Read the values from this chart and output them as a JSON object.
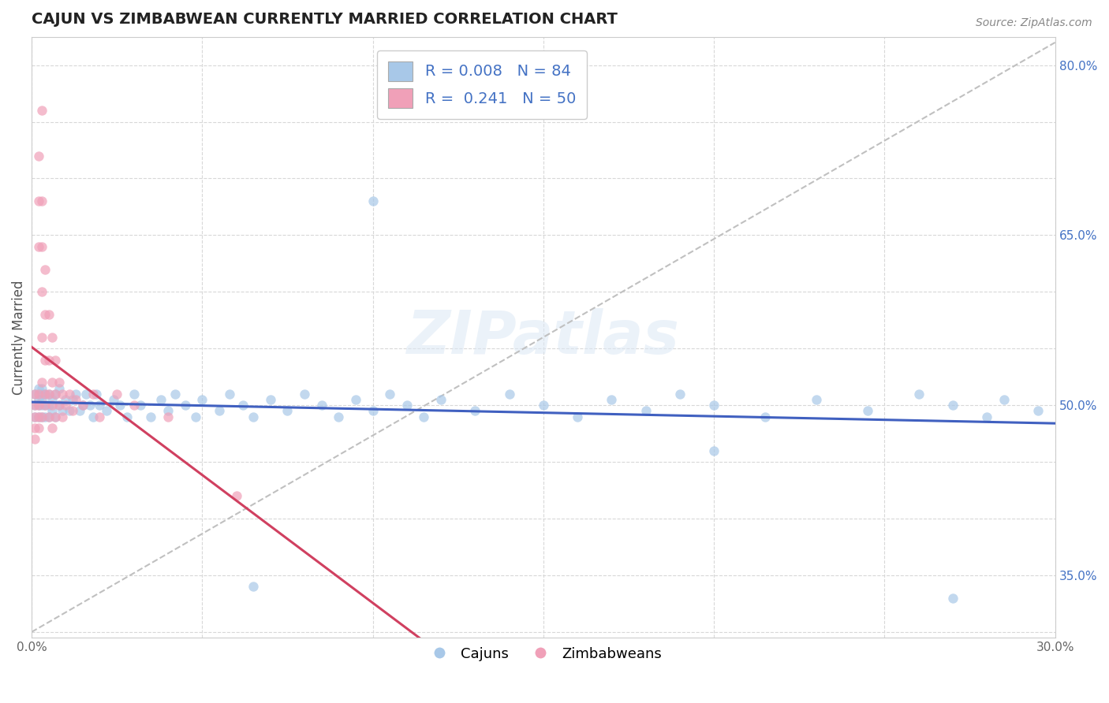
{
  "title": "CAJUN VS ZIMBABWEAN CURRENTLY MARRIED CORRELATION CHART",
  "source_text": "Source: ZipAtlas.com",
  "ylabel": "Currently Married",
  "xlim": [
    0.0,
    0.3
  ],
  "ylim": [
    0.295,
    0.825
  ],
  "cajun_R": 0.008,
  "cajun_N": 84,
  "zimbabwean_R": 0.241,
  "zimbabwean_N": 50,
  "cajun_color": "#a8c8e8",
  "zimbabwean_color": "#f0a0b8",
  "cajun_line_color": "#4060c0",
  "zimbabwean_line_color": "#d04060",
  "ref_line_color": "#c0c0c0",
  "watermark": "ZIPatlas",
  "background_color": "#ffffff",
  "grid_color": "#d8d8d8",
  "cajun_x": [
    0.001,
    0.001,
    0.001,
    0.002,
    0.002,
    0.002,
    0.002,
    0.003,
    0.003,
    0.003,
    0.003,
    0.003,
    0.004,
    0.004,
    0.004,
    0.005,
    0.005,
    0.005,
    0.006,
    0.006,
    0.007,
    0.007,
    0.008,
    0.008,
    0.009,
    0.01,
    0.011,
    0.012,
    0.013,
    0.014,
    0.015,
    0.016,
    0.017,
    0.018,
    0.019,
    0.02,
    0.022,
    0.024,
    0.026,
    0.028,
    0.03,
    0.032,
    0.035,
    0.038,
    0.04,
    0.042,
    0.045,
    0.048,
    0.05,
    0.055,
    0.058,
    0.062,
    0.065,
    0.07,
    0.075,
    0.08,
    0.085,
    0.09,
    0.095,
    0.1,
    0.105,
    0.11,
    0.115,
    0.12,
    0.13,
    0.14,
    0.15,
    0.16,
    0.17,
    0.18,
    0.19,
    0.2,
    0.215,
    0.23,
    0.245,
    0.26,
    0.27,
    0.28,
    0.285,
    0.295,
    0.1,
    0.065,
    0.2,
    0.27
  ],
  "cajun_y": [
    0.5,
    0.51,
    0.49,
    0.5,
    0.515,
    0.49,
    0.505,
    0.5,
    0.51,
    0.49,
    0.505,
    0.515,
    0.5,
    0.51,
    0.49,
    0.5,
    0.51,
    0.49,
    0.505,
    0.495,
    0.51,
    0.49,
    0.5,
    0.515,
    0.495,
    0.505,
    0.495,
    0.505,
    0.51,
    0.495,
    0.5,
    0.51,
    0.5,
    0.49,
    0.51,
    0.5,
    0.495,
    0.505,
    0.5,
    0.49,
    0.51,
    0.5,
    0.49,
    0.505,
    0.495,
    0.51,
    0.5,
    0.49,
    0.505,
    0.495,
    0.51,
    0.5,
    0.49,
    0.505,
    0.495,
    0.51,
    0.5,
    0.49,
    0.505,
    0.495,
    0.51,
    0.5,
    0.49,
    0.505,
    0.495,
    0.51,
    0.5,
    0.49,
    0.505,
    0.495,
    0.51,
    0.5,
    0.49,
    0.505,
    0.495,
    0.51,
    0.5,
    0.49,
    0.505,
    0.495,
    0.68,
    0.34,
    0.46,
    0.33
  ],
  "zim_x": [
    0.001,
    0.001,
    0.001,
    0.001,
    0.001,
    0.002,
    0.002,
    0.002,
    0.002,
    0.002,
    0.002,
    0.002,
    0.003,
    0.003,
    0.003,
    0.003,
    0.003,
    0.003,
    0.003,
    0.004,
    0.004,
    0.004,
    0.004,
    0.004,
    0.005,
    0.005,
    0.005,
    0.005,
    0.006,
    0.006,
    0.006,
    0.006,
    0.007,
    0.007,
    0.007,
    0.008,
    0.008,
    0.009,
    0.009,
    0.01,
    0.011,
    0.012,
    0.013,
    0.015,
    0.018,
    0.02,
    0.025,
    0.03,
    0.04,
    0.06
  ],
  "zim_y": [
    0.5,
    0.49,
    0.48,
    0.51,
    0.47,
    0.68,
    0.64,
    0.72,
    0.5,
    0.51,
    0.49,
    0.48,
    0.76,
    0.68,
    0.64,
    0.6,
    0.56,
    0.52,
    0.49,
    0.62,
    0.58,
    0.54,
    0.5,
    0.51,
    0.58,
    0.54,
    0.51,
    0.49,
    0.56,
    0.52,
    0.5,
    0.48,
    0.54,
    0.51,
    0.49,
    0.52,
    0.5,
    0.51,
    0.49,
    0.5,
    0.51,
    0.495,
    0.505,
    0.5,
    0.51,
    0.49,
    0.51,
    0.5,
    0.49,
    0.42
  ],
  "ytick_positions": [
    0.3,
    0.35,
    0.4,
    0.45,
    0.5,
    0.55,
    0.6,
    0.65,
    0.7,
    0.75,
    0.8
  ],
  "ytick_labels": [
    "",
    "35.0%",
    "",
    "",
    "50.0%",
    "",
    "",
    "65.0%",
    "",
    "",
    "80.0%"
  ],
  "xtick_positions": [
    0.0,
    0.05,
    0.1,
    0.15,
    0.2,
    0.25,
    0.3
  ],
  "xtick_labels": [
    "0.0%",
    "",
    "",
    "",
    "",
    "",
    "30.0%"
  ]
}
